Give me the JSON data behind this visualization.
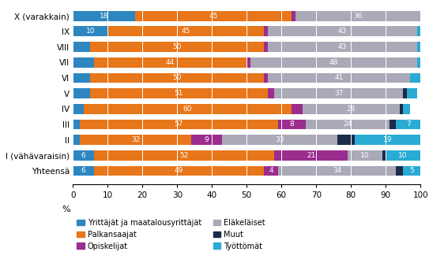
{
  "categories": [
    "X (varakkain)",
    "IX",
    "VIII",
    "VII",
    "VI",
    "V",
    "IV",
    "III",
    "II",
    "I (vähävaraisin)",
    "Yhteensä"
  ],
  "series": {
    "Yrittäjät ja maatalousyrittäjät": [
      18,
      10,
      5,
      6,
      5,
      5,
      3,
      2,
      2,
      6,
      6
    ],
    "Palkansaajat": [
      45,
      45,
      50,
      44,
      50,
      51,
      60,
      57,
      32,
      52,
      49
    ],
    "Opiskelijat": [
      1,
      1,
      1,
      1,
      1,
      2,
      3,
      8,
      9,
      21,
      4
    ],
    "Eläkeläiset": [
      36,
      43,
      43,
      48,
      41,
      37,
      28,
      24,
      33,
      10,
      34
    ],
    "Muut": [
      0,
      0,
      0,
      0,
      0,
      1,
      1,
      2,
      5,
      1,
      2
    ],
    "Työttömät": [
      1,
      1,
      1,
      1,
      3,
      3,
      2,
      7,
      19,
      10,
      5
    ]
  },
  "colors": {
    "Yrittäjät ja maatalousyrittäjät": "#2E86C1",
    "Palkansaajat": "#E8761A",
    "Opiskelijat": "#9B2D8E",
    "Eläkeläiset": "#A9A9B8",
    "Muut": "#1C2B4A",
    "Työttömät": "#29ABD4"
  },
  "show_labels": {
    "Yrittäjät ja maatalousyrittäjät": [
      true,
      true,
      false,
      false,
      false,
      false,
      false,
      false,
      false,
      true,
      true
    ],
    "Palkansaajat": [
      true,
      true,
      true,
      true,
      true,
      true,
      true,
      true,
      true,
      true,
      true
    ],
    "Opiskelijat": [
      false,
      false,
      false,
      false,
      false,
      false,
      false,
      true,
      true,
      true,
      true
    ],
    "Eläkeläiset": [
      true,
      true,
      true,
      true,
      true,
      true,
      true,
      true,
      true,
      true,
      true
    ],
    "Muut": [
      false,
      false,
      false,
      false,
      false,
      false,
      false,
      false,
      false,
      false,
      false
    ],
    "Työttömät": [
      false,
      false,
      false,
      false,
      false,
      false,
      false,
      true,
      true,
      true,
      true
    ]
  },
  "label_values": {
    "Yrittäjät ja maatalousyrittäjät": [
      18,
      10,
      5,
      6,
      5,
      5,
      3,
      2,
      2,
      6,
      6
    ],
    "Palkansaajat": [
      45,
      45,
      50,
      44,
      50,
      51,
      60,
      57,
      32,
      52,
      49
    ],
    "Opiskelijat": [
      1,
      1,
      1,
      1,
      1,
      2,
      3,
      8,
      9,
      21,
      4
    ],
    "Eläkeläiset": [
      36,
      43,
      43,
      48,
      41,
      37,
      28,
      24,
      33,
      10,
      34
    ],
    "Muut": [
      0,
      0,
      0,
      0,
      0,
      1,
      1,
      2,
      5,
      1,
      2
    ],
    "Työttömät": [
      1,
      1,
      1,
      1,
      3,
      3,
      2,
      7,
      19,
      10,
      5
    ]
  },
  "xlabel": "%",
  "xlim": [
    0,
    100
  ],
  "xticks": [
    0,
    10,
    20,
    30,
    40,
    50,
    60,
    70,
    80,
    90,
    100
  ],
  "background_color": "#FFFFFF",
  "label_fontsize": 6.5,
  "legend_fontsize": 7,
  "bar_height": 0.65,
  "legend_order_col1": [
    "Yrittäjät ja maatalousyrittäjät",
    "Opiskelijat",
    "Muut"
  ],
  "legend_order_col2": [
    "Palkansaajat",
    "Eläkeläiset",
    "Työttömät"
  ]
}
